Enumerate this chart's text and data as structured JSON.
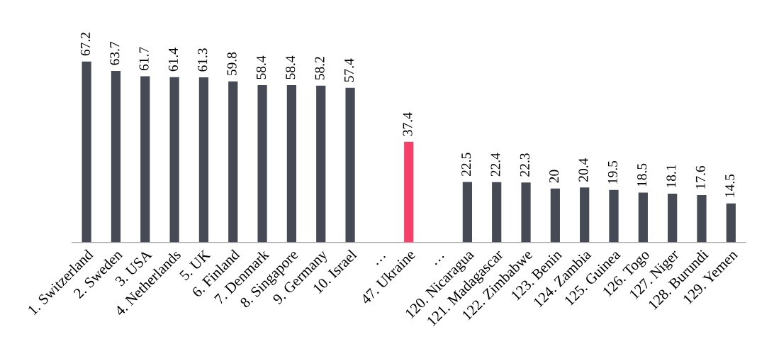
{
  "chart_data": {
    "type": "bar",
    "categories": [
      "1. Switzerland",
      "2. Sweden",
      "3. USA",
      "4. Netherlands",
      "5. UK",
      "6. Finland",
      "7. Denmark",
      "8. Singapore",
      "9. Germany",
      "10. Israel",
      "…",
      "47. Ukraine",
      "…",
      "120. Nicaragua",
      "121. Madagascar",
      "122. Zimbabwe",
      "123. Benin",
      "124. Zambia",
      "125. Guinea",
      "126. Togo",
      "127. Niger",
      "128. Burundi",
      "129. Yemen"
    ],
    "values": [
      67.2,
      63.7,
      61.7,
      61.4,
      61.3,
      59.8,
      58.4,
      58.4,
      58.2,
      57.4,
      null,
      37.4,
      null,
      22.5,
      22.4,
      22.3,
      20,
      20.4,
      19.5,
      18.5,
      18.1,
      17.6,
      14.5
    ],
    "colors": [
      "#454a55",
      "#454a55",
      "#454a55",
      "#454a55",
      "#454a55",
      "#454a55",
      "#454a55",
      "#454a55",
      "#454a55",
      "#454a55",
      "#454a55",
      "#f5416a",
      "#454a55",
      "#454a55",
      "#454a55",
      "#454a55",
      "#454a55",
      "#454a55",
      "#454a55",
      "#454a55",
      "#454a55",
      "#454a55",
      "#454a55"
    ],
    "data_labels": true
  }
}
